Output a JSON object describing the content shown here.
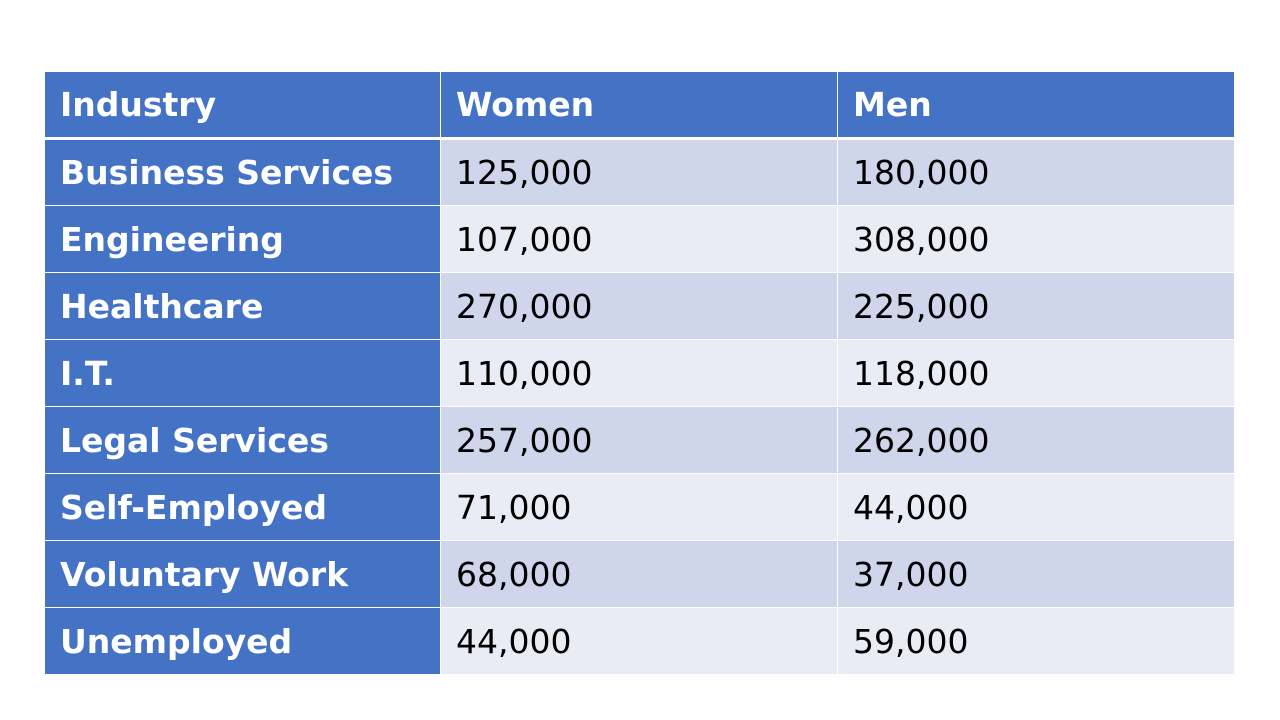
{
  "chart_data": {
    "type": "table",
    "columns": [
      "Industry",
      "Women",
      "Men"
    ],
    "rows": [
      {
        "industry": "Business Services",
        "women": "125,000",
        "men": "180,000"
      },
      {
        "industry": "Engineering",
        "women": "107,000",
        "men": "308,000"
      },
      {
        "industry": "Healthcare",
        "women": "270,000",
        "men": "225,000"
      },
      {
        "industry": "I.T.",
        "women": "110,000",
        "men": "118,000"
      },
      {
        "industry": "Legal Services",
        "women": "257,000",
        "men": "262,000"
      },
      {
        "industry": "Self-Employed",
        "women": "71,000",
        "men": "44,000"
      },
      {
        "industry": "Voluntary Work",
        "women": "68,000",
        "men": "37,000"
      },
      {
        "industry": "Unemployed",
        "women": "44,000",
        "men": "59,000"
      }
    ],
    "colors": {
      "header_fill": "#4472c4",
      "header_text": "#ffffff",
      "row_band_dark": "#cfd5ea",
      "row_band_light": "#e9ebf5",
      "cell_text": "#000000",
      "border": "#ffffff"
    }
  }
}
